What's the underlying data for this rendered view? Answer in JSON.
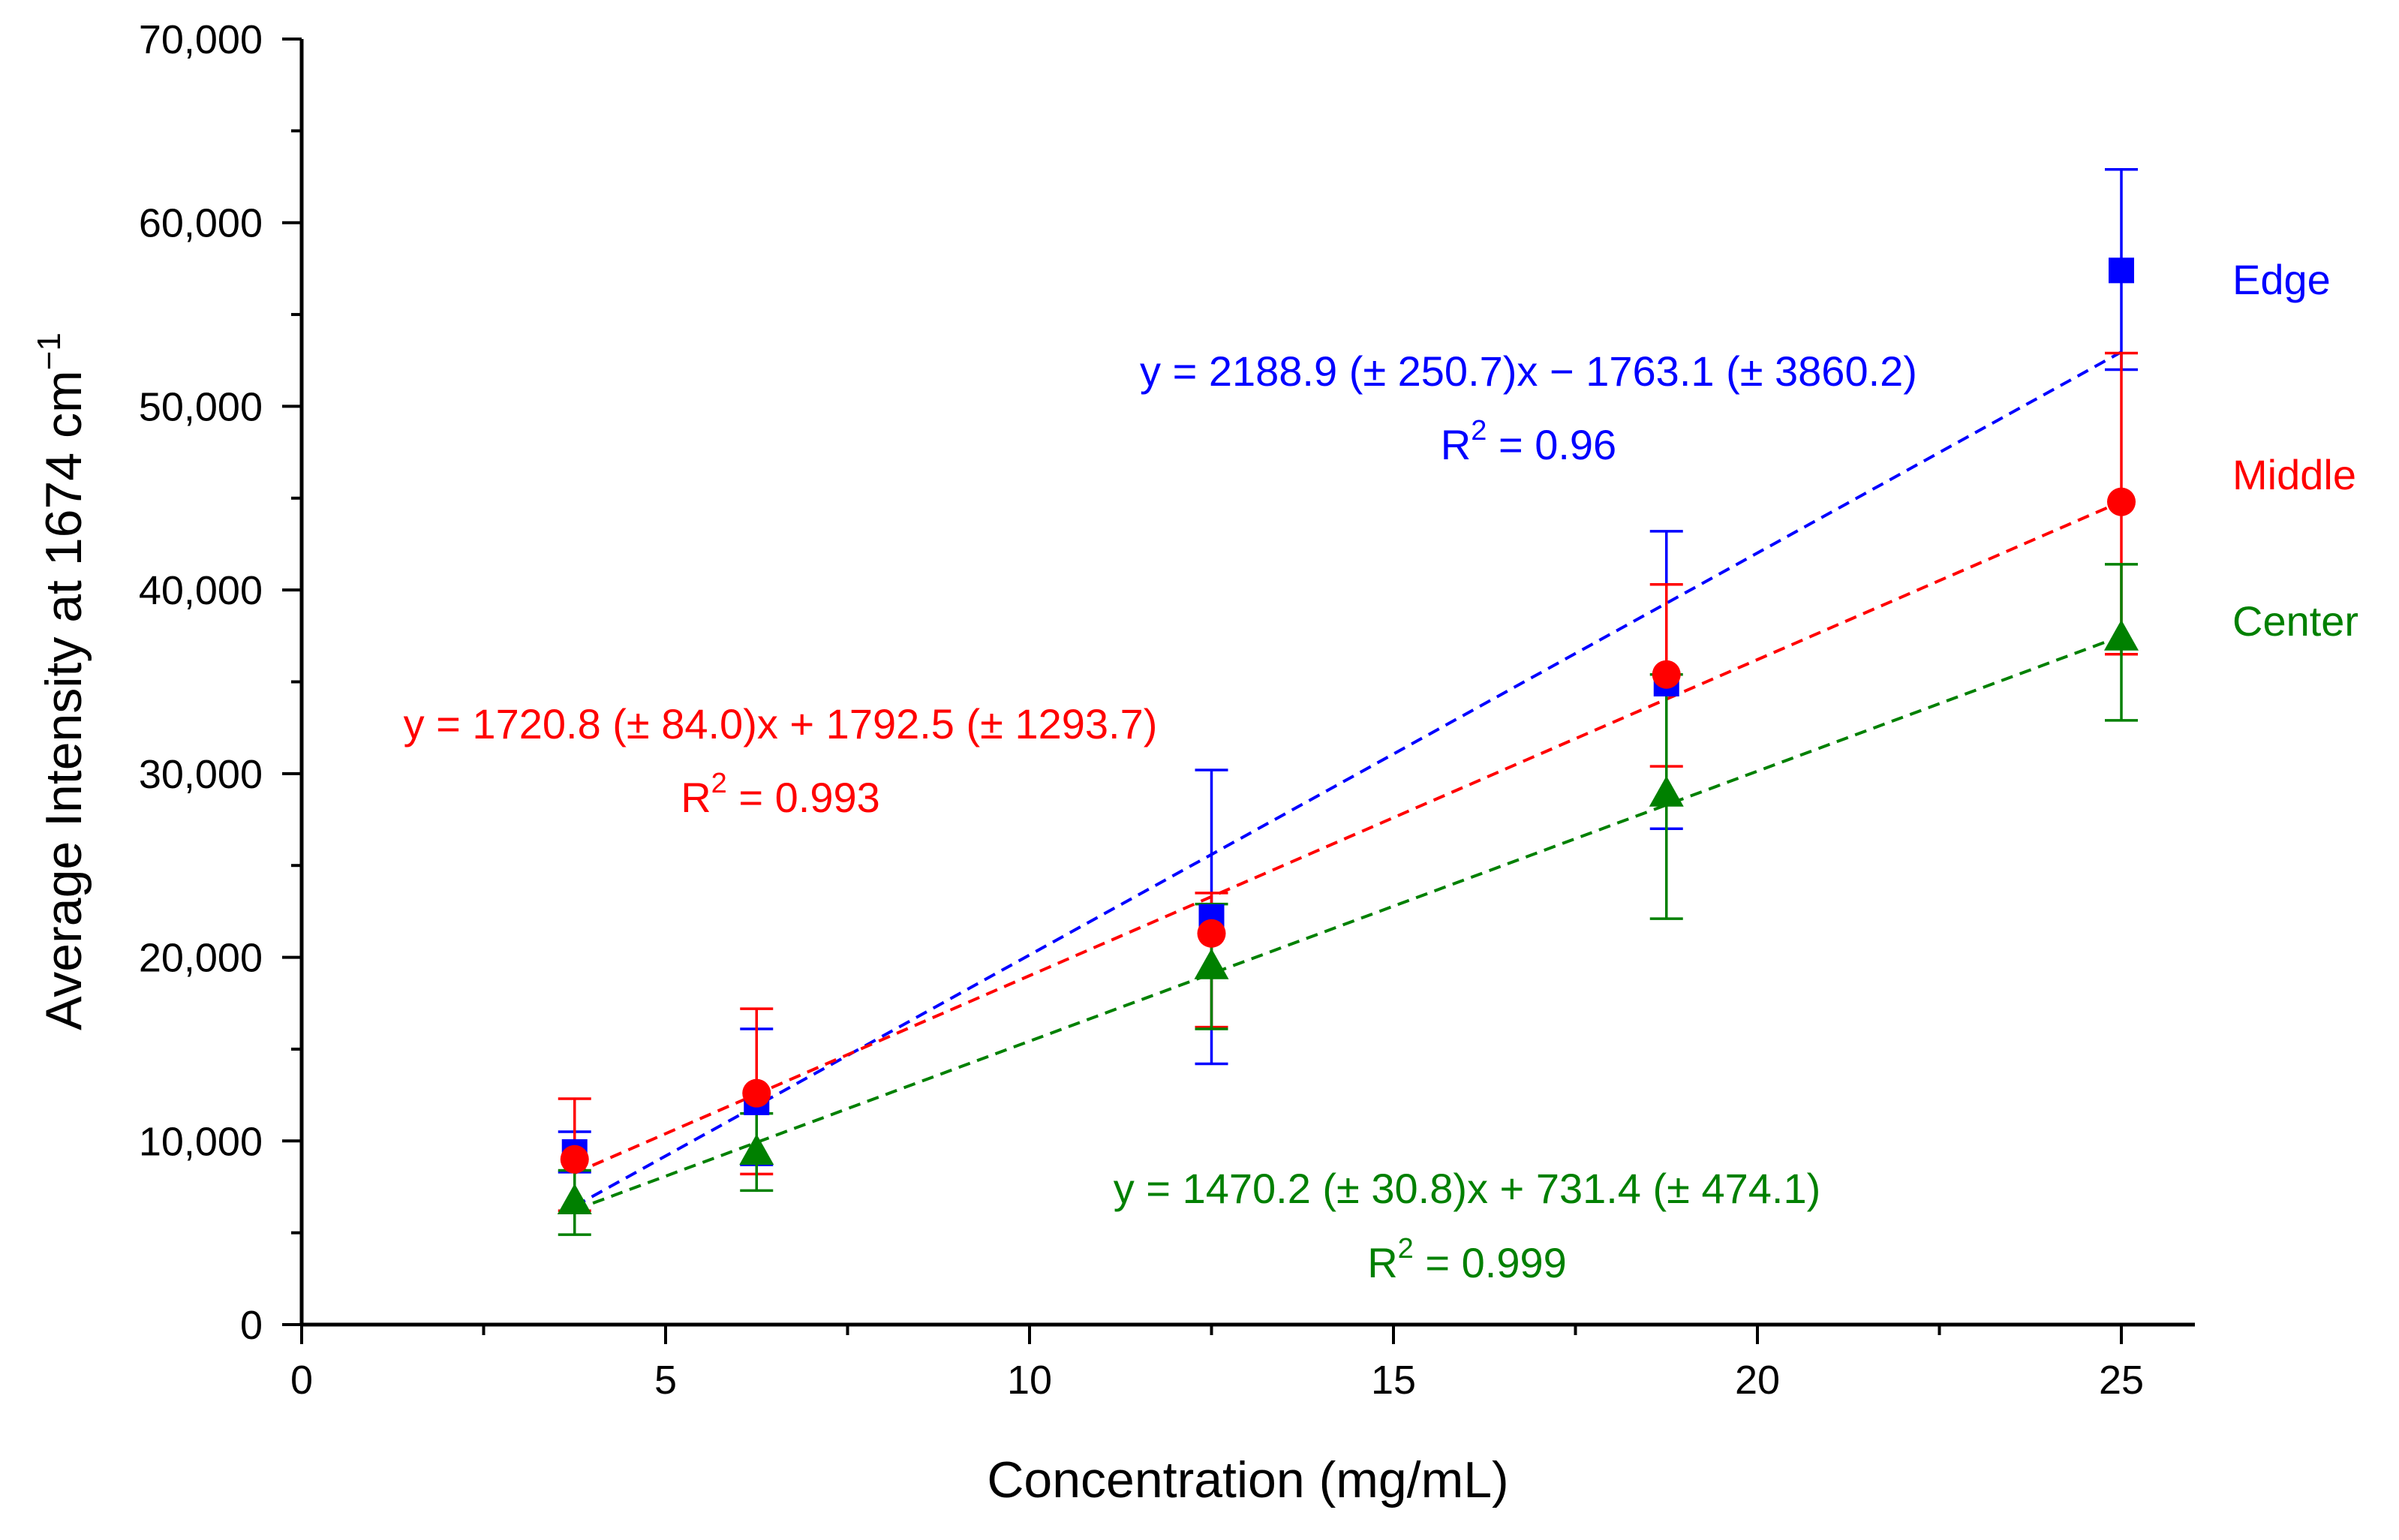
{
  "chart_data": {
    "type": "scatter",
    "title": "",
    "xlabel": "Concentration (mg/mL)",
    "ylabel_main": "Average Intensity at 1674 cm",
    "ylabel_sup": "−1",
    "xlim": [
      0,
      26
    ],
    "ylim": [
      0,
      70000
    ],
    "xticks": [
      {
        "value": 0,
        "label": "0"
      },
      {
        "value": 5,
        "label": "5"
      },
      {
        "value": 10,
        "label": "10"
      },
      {
        "value": 15,
        "label": "15"
      },
      {
        "value": 20,
        "label": "20"
      },
      {
        "value": 25,
        "label": "25"
      }
    ],
    "xminor": [
      2.5,
      7.5,
      12.5,
      17.5,
      22.5
    ],
    "yticks": [
      {
        "value": 0,
        "label": "0"
      },
      {
        "value": 10000,
        "label": "10,000"
      },
      {
        "value": 20000,
        "label": "20,000"
      },
      {
        "value": 30000,
        "label": "30,000"
      },
      {
        "value": 40000,
        "label": "40,000"
      },
      {
        "value": 50000,
        "label": "50,000"
      },
      {
        "value": 60000,
        "label": "60,000"
      },
      {
        "value": 70000,
        "label": "70,000"
      }
    ],
    "yminor": [
      5000,
      15000,
      25000,
      35000,
      45000,
      55000,
      65000
    ],
    "grid": false,
    "series": [
      {
        "name": "Edge",
        "color": "#0000ff",
        "marker": "square",
        "x": [
          3.75,
          6.25,
          12.5,
          18.75,
          25
        ],
        "y": [
          9400,
          12100,
          22200,
          34900,
          57400
        ],
        "yerr_low": [
          8300,
          8700,
          14200,
          27000,
          52000
        ],
        "yerr_high": [
          10500,
          16100,
          30200,
          43200,
          62900
        ],
        "fit": {
          "slope": 2188.9,
          "intercept": -1763.1,
          "x_range": [
            3.75,
            25
          ]
        },
        "equation": "y = 2188.9 (± 250.7)x − 1763.1 (± 3860.2)",
        "r2_label": "R",
        "r2_sup": "2",
        "r2_value": " = 0.96"
      },
      {
        "name": "Middle",
        "color": "#ff0000",
        "marker": "circle",
        "x": [
          3.75,
          6.25,
          12.5,
          18.75,
          25
        ],
        "y": [
          9000,
          12600,
          21300,
          35400,
          44800
        ],
        "yerr_low": [
          6200,
          8200,
          16200,
          30400,
          36500
        ],
        "yerr_high": [
          12300,
          17200,
          23500,
          40300,
          52900
        ],
        "fit": {
          "slope": 1720.8,
          "intercept": 1792.5,
          "x_range": [
            3.75,
            25
          ]
        },
        "equation": "y = 1720.8 (± 84.0)x + 1792.5 (± 1293.7)",
        "r2_label": "R",
        "r2_sup": "2",
        "r2_value": " = 0.993"
      },
      {
        "name": "Center",
        "color": "#008000",
        "marker": "triangle",
        "x": [
          3.75,
          6.25,
          12.5,
          18.75,
          25
        ],
        "y": [
          6700,
          9400,
          19500,
          28900,
          37400
        ],
        "yerr_low": [
          4900,
          7300,
          16100,
          22100,
          32900
        ],
        "yerr_high": [
          8400,
          11500,
          22900,
          35400,
          41400
        ],
        "fit": {
          "slope": 1470.2,
          "intercept": 731.4,
          "x_range": [
            3.75,
            25
          ]
        },
        "equation": "y = 1470.2 (± 30.8)x + 731.4 (± 474.1)",
        "r2_label": "R",
        "r2_sup": "2",
        "r2_value": " = 0.999"
      }
    ]
  }
}
